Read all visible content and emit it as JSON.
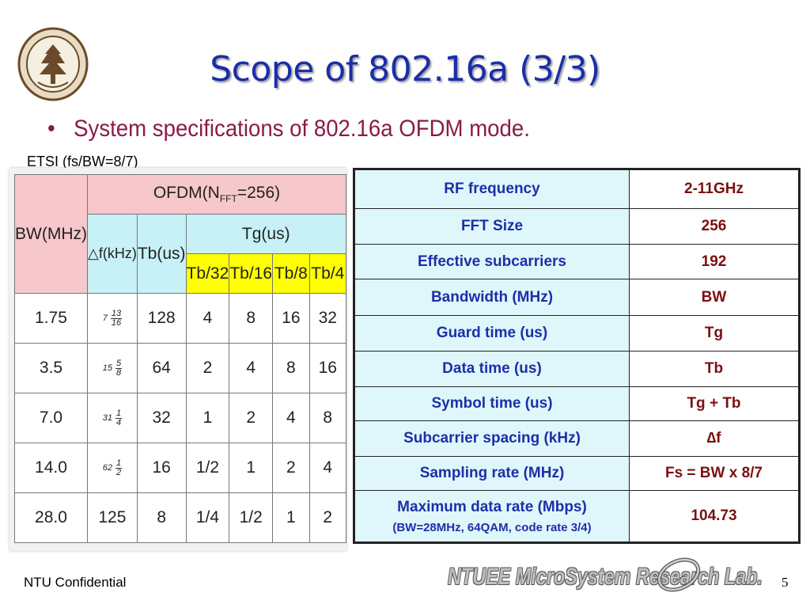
{
  "slide": {
    "title": "Scope of 802.16a (3/3)",
    "bullet": "System specifications of 802.16a OFDM mode.",
    "bullet_marker": "•",
    "etsi_label": "ETSI (fs/BW=8/7)"
  },
  "left_table": {
    "h_bw": "BW(MHz)",
    "h_ofdm_pre": "OFDM(N",
    "h_ofdm_sub": "FFT",
    "h_ofdm_post": "=256)",
    "h_df": "△f(kHz)",
    "h_tb": "Tb(us)",
    "h_tg": "Tg(us)",
    "h_tg_cols": [
      "Tb/32",
      "Tb/16",
      "Tb/8",
      "Tb/4"
    ],
    "rows": [
      {
        "bw": "1.75",
        "df_whole": "7",
        "df_num": "13",
        "df_den": "16",
        "tb": "128",
        "tg": [
          "4",
          "8",
          "16",
          "32"
        ]
      },
      {
        "bw": "3.5",
        "df_whole": "15",
        "df_num": "5",
        "df_den": "8",
        "tb": "64",
        "tg": [
          "2",
          "4",
          "8",
          "16"
        ]
      },
      {
        "bw": "7.0",
        "df_whole": "31",
        "df_num": "1",
        "df_den": "4",
        "tb": "32",
        "tg": [
          "1",
          "2",
          "4",
          "8"
        ]
      },
      {
        "bw": "14.0",
        "df_whole": "62",
        "df_num": "1",
        "df_den": "2",
        "tb": "16",
        "tg": [
          "1/2",
          "1",
          "2",
          "4"
        ]
      },
      {
        "bw": "28.0",
        "df_whole": "",
        "df_num": "",
        "df_den": "",
        "df_plain": "125",
        "tb": "8",
        "tg": [
          "1/4",
          "1/2",
          "1",
          "2"
        ]
      }
    ]
  },
  "spec_table": {
    "rows": [
      {
        "k": "RF frequency",
        "v": "2-11GHz"
      },
      {
        "k": "FFT Size",
        "v": "256"
      },
      {
        "k": "Effective subcarriers",
        "v": "192"
      },
      {
        "k": "Bandwidth (MHz)",
        "v": "BW"
      },
      {
        "k": "Guard time (us)",
        "v": "Tg"
      },
      {
        "k": "Data time (us)",
        "v": "Tb"
      },
      {
        "k": "Symbol time (us)",
        "v": "Tg + Tb"
      },
      {
        "k": "Subcarrier spacing (kHz)",
        "v": "∆f"
      },
      {
        "k": "Sampling rate (MHz)",
        "v": "Fs = BW x 8/7"
      },
      {
        "k": "Maximum data rate (Mbps)",
        "note": "(BW=28MHz, 64QAM, code rate 3/4)",
        "v": "104.73"
      }
    ]
  },
  "footer": {
    "confidential": "NTU Confidential",
    "lab": "NTUEE MicroSystem Research Lab.",
    "page": "5"
  },
  "colors": {
    "title": "#1a2ea8",
    "bullet": "#8a1b4a",
    "spec_key": "#1e2fa6",
    "spec_val": "#7a1010",
    "header_pink": "#f6c7cb",
    "header_cyan": "#c7f1f6",
    "header_yellow": "#ffff00"
  }
}
